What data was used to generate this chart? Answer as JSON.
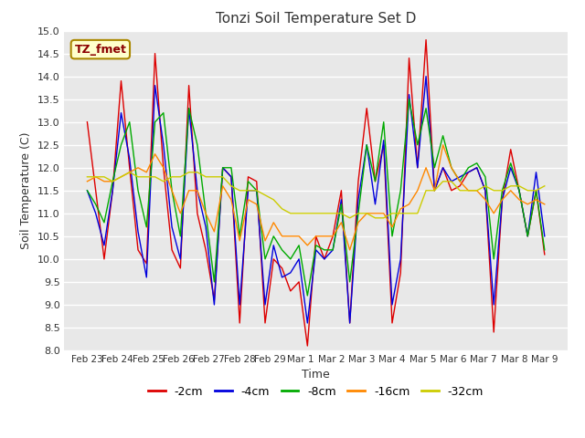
{
  "title": "Tonzi Soil Temperature Set D",
  "xlabel": "Time",
  "ylabel": "Soil Temperature (C)",
  "ylim": [
    8.0,
    15.0
  ],
  "yticks": [
    8.0,
    8.5,
    9.0,
    9.5,
    10.0,
    10.5,
    11.0,
    11.5,
    12.0,
    12.5,
    13.0,
    13.5,
    14.0,
    14.5,
    15.0
  ],
  "xtick_labels": [
    "Feb 23",
    "Feb 24",
    "Feb 25",
    "Feb 26",
    "Feb 27",
    "Feb 28",
    "Feb 29",
    "Mar 1",
    "Mar 2",
    "Mar 3",
    "Mar 4",
    "Mar 5",
    "Mar 6",
    "Mar 7",
    "Mar 8",
    "Mar 9"
  ],
  "legend_label": "TZ_fmet",
  "fig_bg_color": "#ffffff",
  "plot_bg_color": "#e8e8e8",
  "grid_color": "#ffffff",
  "series": {
    "-2cm": {
      "color": "#dd0000",
      "data": [
        13.0,
        11.5,
        10.0,
        11.5,
        13.9,
        12.0,
        10.2,
        9.9,
        14.5,
        12.0,
        10.2,
        9.8,
        13.8,
        11.0,
        10.2,
        9.1,
        12.0,
        11.8,
        8.6,
        11.8,
        11.7,
        8.6,
        10.0,
        9.8,
        9.3,
        9.5,
        8.1,
        10.5,
        10.0,
        10.5,
        11.5,
        8.6,
        11.7,
        13.3,
        11.7,
        12.5,
        8.6,
        9.7,
        14.4,
        12.0,
        14.8,
        11.5,
        12.0,
        11.5,
        11.6,
        11.9,
        12.0,
        11.5,
        8.4,
        11.3,
        12.4,
        11.5,
        10.5,
        11.5,
        10.1
      ]
    },
    "-4cm": {
      "color": "#0000dd",
      "data": [
        11.5,
        11.0,
        10.3,
        11.5,
        13.2,
        12.2,
        10.6,
        9.6,
        13.8,
        12.5,
        10.7,
        10.0,
        13.3,
        11.5,
        10.7,
        9.0,
        12.0,
        11.8,
        9.0,
        11.5,
        11.5,
        9.0,
        10.3,
        9.6,
        9.7,
        10.0,
        8.6,
        10.2,
        10.0,
        10.2,
        11.3,
        8.6,
        11.3,
        12.5,
        11.2,
        12.6,
        9.0,
        10.0,
        13.6,
        12.0,
        14.0,
        11.5,
        12.0,
        11.7,
        11.8,
        11.9,
        12.0,
        11.5,
        9.0,
        11.3,
        12.0,
        11.5,
        10.5,
        11.9,
        10.5
      ]
    },
    "-8cm": {
      "color": "#00aa00",
      "data": [
        11.5,
        11.2,
        10.8,
        11.7,
        12.5,
        13.0,
        11.5,
        10.7,
        13.0,
        13.2,
        11.5,
        10.5,
        13.3,
        12.5,
        11.0,
        9.5,
        12.0,
        12.0,
        10.5,
        11.7,
        11.5,
        10.0,
        10.5,
        10.2,
        10.0,
        10.3,
        9.2,
        10.3,
        10.2,
        10.2,
        11.2,
        9.5,
        11.0,
        12.5,
        11.7,
        13.0,
        10.5,
        11.5,
        13.5,
        12.5,
        13.3,
        12.0,
        12.7,
        12.0,
        11.7,
        12.0,
        12.1,
        11.8,
        10.0,
        11.5,
        12.1,
        11.5,
        10.5,
        11.5,
        10.2
      ]
    },
    "-16cm": {
      "color": "#ff8800",
      "data": [
        11.7,
        11.8,
        11.7,
        11.7,
        11.8,
        11.9,
        12.0,
        11.9,
        12.3,
        12.0,
        11.5,
        11.0,
        11.5,
        11.5,
        11.0,
        10.6,
        11.6,
        11.3,
        10.4,
        11.3,
        11.2,
        10.4,
        10.8,
        10.5,
        10.5,
        10.5,
        10.3,
        10.5,
        10.5,
        10.5,
        10.8,
        10.2,
        10.8,
        11.0,
        11.0,
        11.0,
        10.7,
        11.1,
        11.2,
        11.5,
        12.0,
        11.5,
        12.5,
        12.0,
        11.7,
        11.5,
        11.5,
        11.3,
        11.0,
        11.3,
        11.5,
        11.3,
        11.2,
        11.3,
        11.2
      ]
    },
    "-32cm": {
      "color": "#cccc00",
      "data": [
        11.8,
        11.8,
        11.8,
        11.7,
        11.8,
        11.9,
        11.8,
        11.8,
        11.8,
        11.7,
        11.8,
        11.8,
        11.9,
        11.9,
        11.8,
        11.8,
        11.8,
        11.6,
        11.5,
        11.5,
        11.5,
        11.4,
        11.3,
        11.1,
        11.0,
        11.0,
        11.0,
        11.0,
        11.0,
        11.0,
        11.0,
        10.9,
        11.0,
        11.0,
        10.9,
        10.9,
        11.0,
        11.0,
        11.0,
        11.0,
        11.5,
        11.5,
        11.7,
        11.7,
        11.5,
        11.5,
        11.5,
        11.6,
        11.5,
        11.5,
        11.6,
        11.6,
        11.5,
        11.5,
        11.6
      ]
    }
  }
}
